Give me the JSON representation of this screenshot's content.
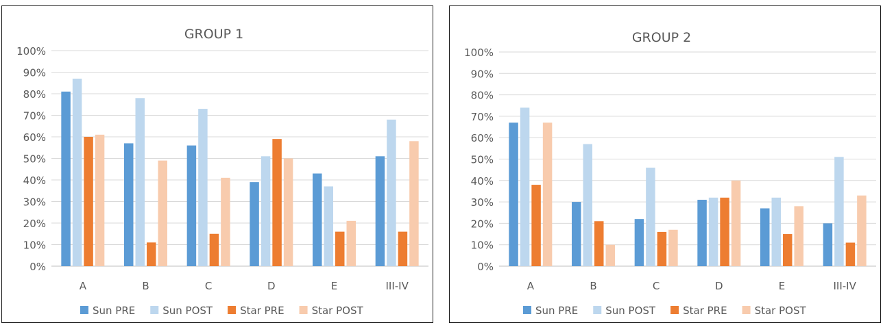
{
  "colors": {
    "sun_pre": "#5b9bd5",
    "sun_post": "#bdd7ee",
    "star_pre": "#ed7d31",
    "star_post": "#f8cbad",
    "grid": "#d9d9d9",
    "text": "#595959"
  },
  "chart_data": [
    {
      "type": "bar",
      "title": "GROUP 1",
      "categories": [
        "A",
        "B",
        "C",
        "D",
        "E",
        "III-IV"
      ],
      "yticks": [
        "0%",
        "10%",
        "20%",
        "30%",
        "40%",
        "50%",
        "60%",
        "70%",
        "80%",
        "90%",
        "100%"
      ],
      "ylim": [
        0,
        100
      ],
      "legend_position": "bottom",
      "grid": true,
      "series": [
        {
          "name": "Sun PRE",
          "color_key": "sun_pre",
          "values": [
            81,
            57,
            56,
            39,
            43,
            51
          ]
        },
        {
          "name": "Sun POST",
          "color_key": "sun_post",
          "values": [
            87,
            78,
            73,
            51,
            37,
            68
          ]
        },
        {
          "name": "Star PRE",
          "color_key": "star_pre",
          "values": [
            60,
            11,
            15,
            59,
            16,
            16
          ]
        },
        {
          "name": "Star POST",
          "color_key": "star_post",
          "values": [
            61,
            49,
            41,
            50,
            21,
            58
          ]
        }
      ]
    },
    {
      "type": "bar",
      "title": "GROUP 2",
      "categories": [
        "A",
        "B",
        "C",
        "D",
        "E",
        "III-IV"
      ],
      "yticks": [
        "0%",
        "10%",
        "20%",
        "30%",
        "40%",
        "50%",
        "60%",
        "70%",
        "80%",
        "90%",
        "100%"
      ],
      "ylim": [
        0,
        100
      ],
      "legend_position": "bottom",
      "grid": true,
      "series": [
        {
          "name": "Sun PRE",
          "color_key": "sun_pre",
          "values": [
            67,
            30,
            22,
            31,
            27,
            20
          ]
        },
        {
          "name": "Sun POST",
          "color_key": "sun_post",
          "values": [
            74,
            57,
            46,
            32,
            32,
            51
          ]
        },
        {
          "name": "Star PRE",
          "color_key": "star_pre",
          "values": [
            38,
            21,
            16,
            32,
            15,
            11
          ]
        },
        {
          "name": "Star POST",
          "color_key": "star_post",
          "values": [
            67,
            10,
            17,
            40,
            28,
            33
          ]
        }
      ]
    }
  ]
}
